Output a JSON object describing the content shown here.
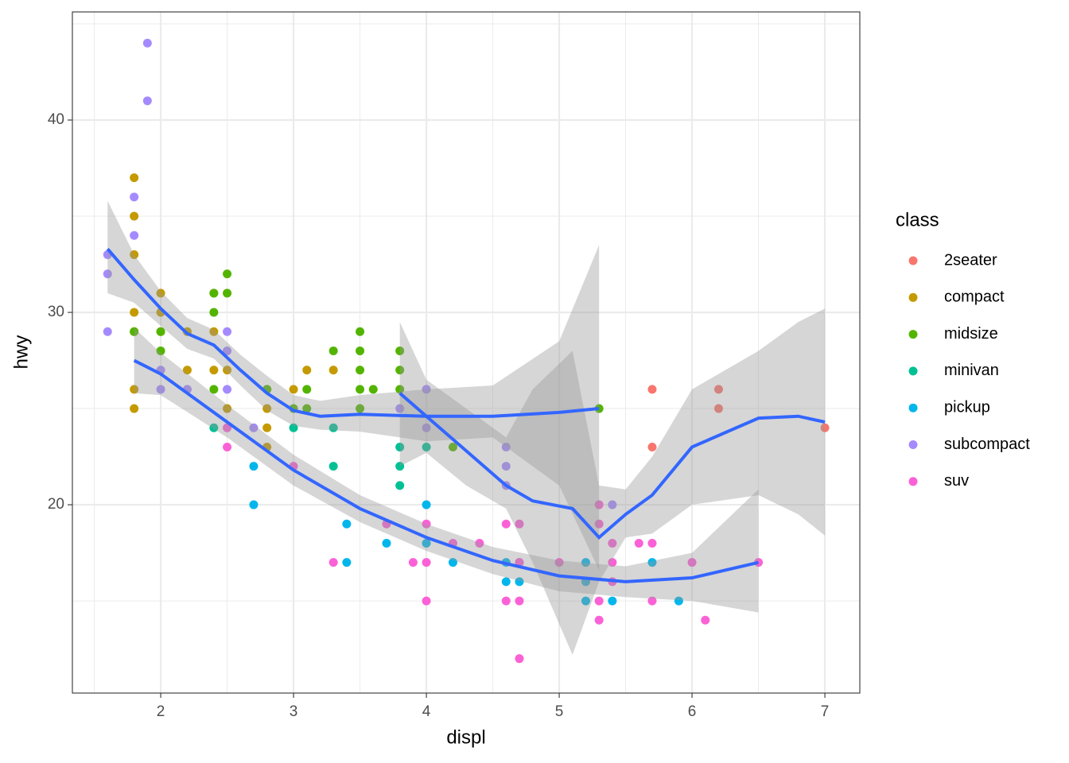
{
  "chart_data": {
    "type": "scatter",
    "x_label": "displ",
    "y_label": "hwy",
    "legend_title": "class",
    "legend_position": "right",
    "grid": true,
    "xlim": [
      1.335,
      7.263
    ],
    "ylim": [
      10.21,
      45.62
    ],
    "xticks": [
      2,
      3,
      4,
      5,
      6,
      7
    ],
    "yticks": [
      20,
      30,
      40
    ],
    "xminorticks": [
      1.5,
      2.5,
      3.5,
      4.5,
      5.5,
      6.5
    ],
    "yminorticks": [
      15,
      25,
      35,
      45
    ],
    "series": [
      {
        "name": "2seater",
        "color": "#f8766d",
        "x": [
          5.7,
          5.7,
          6.2,
          6.2,
          7
        ],
        "y": [
          26,
          23,
          26,
          25,
          24
        ]
      },
      {
        "name": "compact",
        "color": "#c49a00",
        "x": [
          1.8,
          1.8,
          1.8,
          1.8,
          1.8,
          1.8,
          1.8,
          2,
          2,
          2,
          2.2,
          2.2,
          2.4,
          2.4,
          2.4,
          2.5,
          2.5,
          2.8,
          2.8,
          2.8,
          2.8,
          3,
          3.1,
          3.3
        ],
        "y": [
          37,
          35,
          33,
          30,
          29,
          26,
          25,
          31,
          30,
          29,
          29,
          27,
          31,
          29,
          27,
          27,
          25,
          26,
          25,
          24,
          23,
          26,
          27,
          27
        ]
      },
      {
        "name": "midsize",
        "color": "#53b400",
        "x": [
          1.8,
          2,
          2,
          2.4,
          2.4,
          2.4,
          2.5,
          2.5,
          2.8,
          3,
          3.1,
          3.1,
          3.3,
          3.5,
          3.5,
          3.5,
          3.5,
          3.5,
          3.6,
          3.8,
          3.8,
          3.8,
          4.2,
          5.3
        ],
        "y": [
          29,
          29,
          28,
          31,
          30,
          26,
          32,
          31,
          26,
          25,
          26,
          25,
          28,
          29,
          28,
          27,
          26,
          25,
          26,
          28,
          27,
          26,
          23,
          25
        ]
      },
      {
        "name": "minivan",
        "color": "#00c094",
        "x": [
          2.4,
          3,
          3.3,
          3.3,
          3.8,
          3.8,
          3.8,
          4
        ],
        "y": [
          24,
          24,
          24,
          22,
          23,
          22,
          21,
          23
        ]
      },
      {
        "name": "pickup",
        "color": "#00b6eb",
        "x": [
          2.7,
          2.7,
          3.4,
          3.4,
          3.7,
          4,
          4,
          4.2,
          4.6,
          4.6,
          4.7,
          4.7,
          5.2,
          5.2,
          5.2,
          5.4,
          5.7,
          5.9
        ],
        "y": [
          22,
          20,
          19,
          17,
          18,
          20,
          18,
          17,
          17,
          16,
          17,
          16,
          17,
          16,
          15,
          15,
          17,
          15
        ]
      },
      {
        "name": "subcompact",
        "color": "#a58aff",
        "x": [
          1.6,
          1.6,
          1.6,
          1.8,
          1.8,
          1.9,
          1.9,
          2,
          2,
          2.2,
          2.5,
          2.5,
          2.5,
          2.7,
          3.8,
          4,
          4,
          4.6,
          4.6,
          4.6,
          5.4
        ],
        "y": [
          33,
          32,
          29,
          36,
          34,
          44,
          41,
          27,
          26,
          26,
          29,
          28,
          26,
          24,
          25,
          26,
          24,
          23,
          22,
          21,
          20
        ]
      },
      {
        "name": "suv",
        "color": "#fb61d7",
        "x": [
          2.5,
          2.5,
          3,
          3.3,
          3.7,
          3.9,
          4,
          4,
          4,
          4.2,
          4.4,
          4.6,
          4.6,
          4.7,
          4.7,
          4.7,
          4.7,
          5,
          5.3,
          5.3,
          5.3,
          5.3,
          5.4,
          5.4,
          5.4,
          5.6,
          5.7,
          5.7,
          6,
          6.1,
          6.5
        ],
        "y": [
          24,
          23,
          22,
          17,
          19,
          17,
          19,
          17,
          15,
          18,
          18,
          19,
          15,
          19,
          17,
          15,
          12,
          17,
          20,
          19,
          15,
          14,
          18,
          17,
          16,
          18,
          18,
          15,
          17,
          14,
          17
        ]
      }
    ],
    "smooth_color": "#3366ff",
    "band_color": "#999999",
    "smooth": [
      {
        "x": [
          1.6,
          1.8,
          2,
          2.2,
          2.4,
          2.6,
          2.8,
          3,
          3.2,
          3.5,
          4,
          4.5,
          5,
          5.3
        ],
        "y": [
          33.3,
          31.7,
          30.2,
          28.9,
          28.3,
          27,
          25.8,
          24.9,
          24.6,
          24.7,
          24.6,
          24.6,
          24.8,
          25
        ],
        "ymin": [
          31,
          30.5,
          29.3,
          28.1,
          27.6,
          26.2,
          24.9,
          24.1,
          23.9,
          23.8,
          23.3,
          23.5,
          21,
          16.6
        ],
        "ymax": [
          35.8,
          33,
          31.1,
          29.7,
          29.1,
          27.8,
          26.7,
          25.7,
          25.4,
          25.7,
          26,
          26.2,
          28.5,
          33.5
        ]
      },
      {
        "x": [
          1.8,
          2,
          2.5,
          3,
          3.5,
          4,
          4.5,
          5,
          5.5,
          6,
          6.5
        ],
        "y": [
          27.5,
          26.8,
          24.3,
          21.8,
          19.8,
          18.3,
          17.1,
          16.3,
          16,
          16.2,
          17
        ],
        "ymin": [
          25.8,
          25.7,
          23.5,
          21,
          19.1,
          17.6,
          16.4,
          15.5,
          15.2,
          15,
          14.4
        ],
        "ymax": [
          29.2,
          27.9,
          25.2,
          22.6,
          20.5,
          19,
          17.8,
          17.1,
          16.8,
          17.5,
          20.8
        ]
      },
      {
        "x": [
          3.8,
          4,
          4.3,
          4.6,
          4.8,
          5.1,
          5.3,
          5.5,
          5.7,
          6,
          6.5,
          6.8,
          7
        ],
        "y": [
          25.8,
          24.6,
          22.8,
          21,
          20.2,
          19.8,
          18.3,
          19.5,
          20.5,
          23,
          24.5,
          24.6,
          24.3
        ],
        "ymin": [
          22,
          22.7,
          21,
          19.8,
          17,
          12.2,
          16,
          18.3,
          18.5,
          20,
          20.5,
          19.5,
          18.4
        ],
        "ymax": [
          29.5,
          26.5,
          25,
          23.5,
          26,
          28,
          21,
          20.8,
          22.5,
          26,
          28,
          29.5,
          30.2
        ]
      }
    ]
  }
}
